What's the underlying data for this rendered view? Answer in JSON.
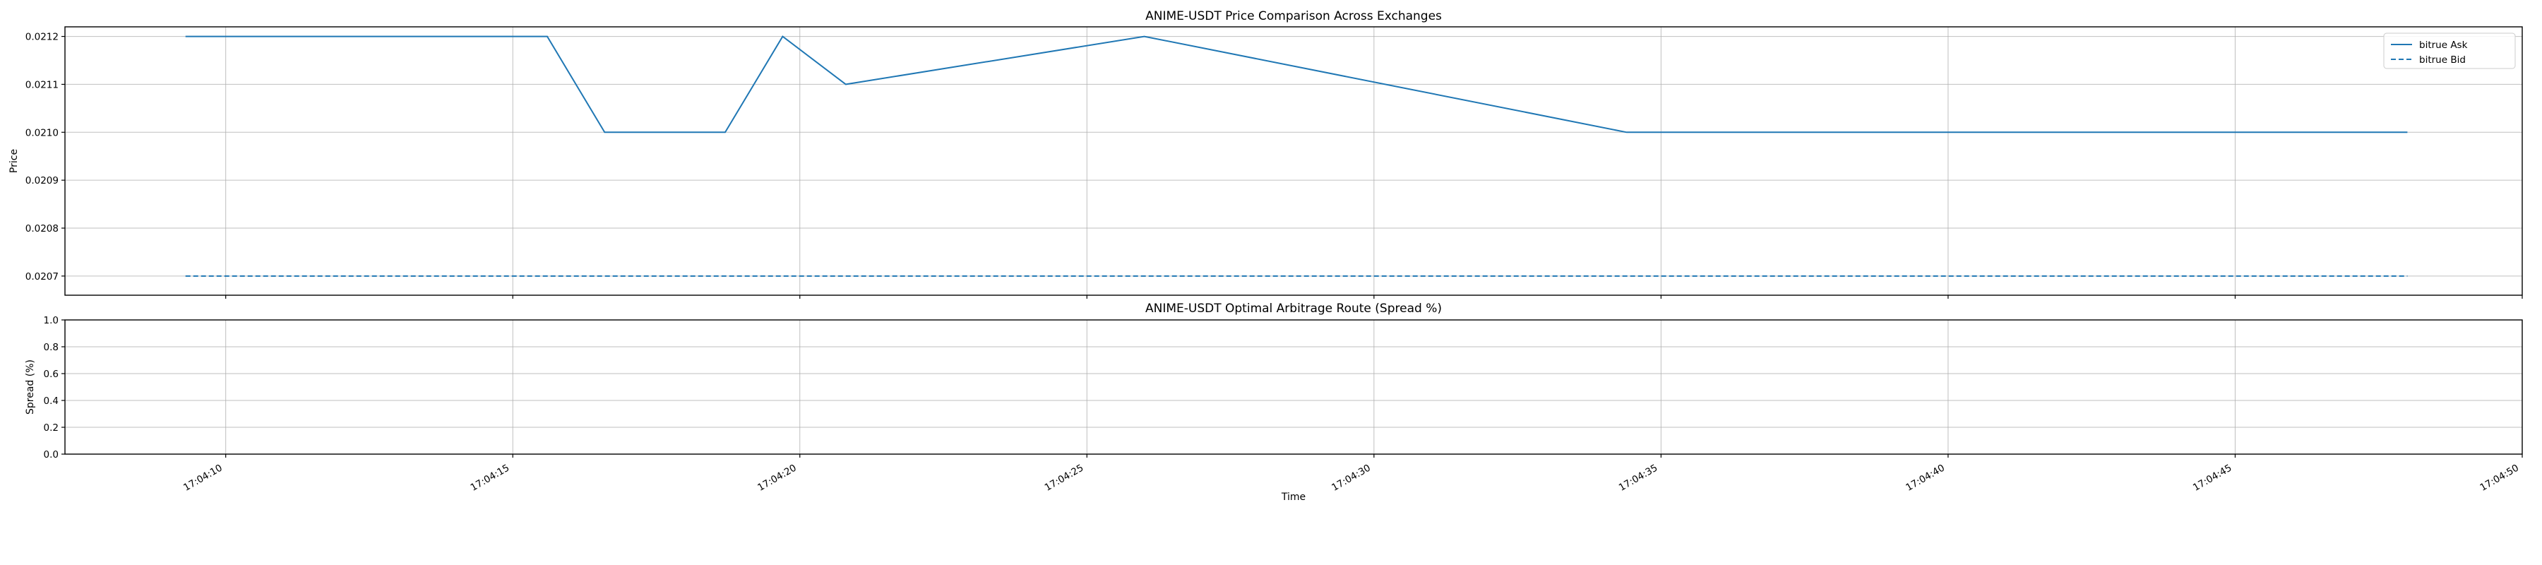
{
  "colors": {
    "series": "#1f77b4",
    "grid": "#b0b0b0"
  },
  "chart_data": [
    {
      "type": "line",
      "title": "ANIME-USDT Price Comparison Across Exchanges",
      "xlabel": "",
      "ylabel": "Price",
      "grid": true,
      "legend_position": "top-right",
      "xlim": [
        "17:04:07.2",
        "17:04:50"
      ],
      "ylim": [
        0.02066,
        0.02122
      ],
      "yticks": [
        "0.0207",
        "0.0208",
        "0.0209",
        "0.0210",
        "0.0211",
        "0.0212"
      ],
      "series": [
        {
          "name": "bitrue Ask",
          "style": "solid",
          "points": [
            {
              "x": "17:04:09.3",
              "y": 0.0212
            },
            {
              "x": "17:04:15.6",
              "y": 0.0212
            },
            {
              "x": "17:04:16.6",
              "y": 0.021
            },
            {
              "x": "17:04:18.7",
              "y": 0.021
            },
            {
              "x": "17:04:19.7",
              "y": 0.0212
            },
            {
              "x": "17:04:20.8",
              "y": 0.0211
            },
            {
              "x": "17:04:26.0",
              "y": 0.0212
            },
            {
              "x": "17:04:34.4",
              "y": 0.021
            },
            {
              "x": "17:04:48.0",
              "y": 0.021
            }
          ]
        },
        {
          "name": "bitrue Bid",
          "style": "dashed",
          "points": [
            {
              "x": "17:04:09.3",
              "y": 0.0207
            },
            {
              "x": "17:04:48.0",
              "y": 0.0207
            }
          ]
        }
      ]
    },
    {
      "type": "line",
      "title": "ANIME-USDT Optimal Arbitrage Route (Spread %)",
      "xlabel": "Time",
      "ylabel": "Spread (%)",
      "grid": true,
      "xlim": [
        "17:04:07.2",
        "17:04:50"
      ],
      "ylim": [
        0.0,
        1.0
      ],
      "yticks": [
        "0.0",
        "0.2",
        "0.4",
        "0.6",
        "0.8",
        "1.0"
      ],
      "xticks": [
        "17:04:10",
        "17:04:15",
        "17:04:20",
        "17:04:25",
        "17:04:30",
        "17:04:35",
        "17:04:40",
        "17:04:45",
        "17:04:50"
      ],
      "series": []
    }
  ]
}
